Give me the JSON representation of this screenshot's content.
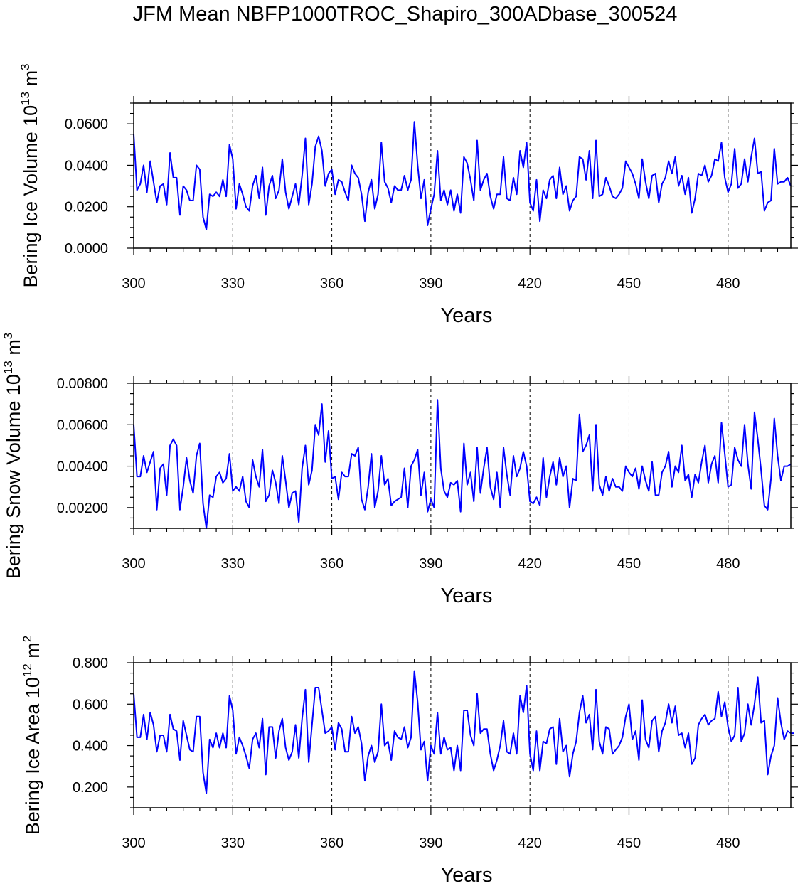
{
  "title": "JFM Mean NBFP1000TROC_Shapiro_300ADbase_300524",
  "chart_data": [
    {
      "type": "line",
      "ylabel_main": "Bering Ice Volume 10",
      "ylabel_exp": "13",
      "ylabel_unit": " m",
      "ylabel_unit_exp": "3",
      "xlabel": "Years",
      "xlim": [
        300,
        499
      ],
      "ylim": [
        0.0,
        0.07
      ],
      "xticks": [
        300,
        330,
        360,
        390,
        420,
        450,
        480
      ],
      "xtick_labels": [
        "300",
        "330",
        "360",
        "390",
        "420",
        "450",
        "480"
      ],
      "yticks": [
        0.0,
        0.02,
        0.04,
        0.06
      ],
      "ytick_labels": [
        "0.0000",
        "0.0200",
        "0.0400",
        "0.0600"
      ],
      "series_color": "#0000ff",
      "x_start": 300,
      "values": [
        0.055,
        0.028,
        0.031,
        0.04,
        0.027,
        0.042,
        0.032,
        0.022,
        0.03,
        0.031,
        0.021,
        0.046,
        0.034,
        0.034,
        0.016,
        0.03,
        0.028,
        0.023,
        0.023,
        0.04,
        0.038,
        0.015,
        0.009,
        0.026,
        0.025,
        0.027,
        0.025,
        0.033,
        0.025,
        0.05,
        0.043,
        0.019,
        0.031,
        0.026,
        0.02,
        0.018,
        0.03,
        0.035,
        0.024,
        0.039,
        0.016,
        0.03,
        0.035,
        0.024,
        0.028,
        0.043,
        0.027,
        0.019,
        0.025,
        0.031,
        0.021,
        0.035,
        0.053,
        0.021,
        0.031,
        0.049,
        0.054,
        0.047,
        0.03,
        0.036,
        0.038,
        0.026,
        0.033,
        0.032,
        0.027,
        0.023,
        0.04,
        0.036,
        0.034,
        0.026,
        0.013,
        0.027,
        0.033,
        0.019,
        0.026,
        0.051,
        0.032,
        0.029,
        0.022,
        0.03,
        0.028,
        0.028,
        0.035,
        0.028,
        0.033,
        0.061,
        0.04,
        0.024,
        0.033,
        0.011,
        0.019,
        0.026,
        0.047,
        0.023,
        0.028,
        0.021,
        0.028,
        0.018,
        0.026,
        0.017,
        0.044,
        0.041,
        0.033,
        0.023,
        0.052,
        0.028,
        0.033,
        0.036,
        0.025,
        0.019,
        0.026,
        0.026,
        0.044,
        0.024,
        0.023,
        0.034,
        0.026,
        0.047,
        0.039,
        0.051,
        0.022,
        0.018,
        0.033,
        0.013,
        0.028,
        0.024,
        0.033,
        0.035,
        0.024,
        0.039,
        0.026,
        0.03,
        0.018,
        0.023,
        0.025,
        0.044,
        0.043,
        0.033,
        0.047,
        0.024,
        0.052,
        0.025,
        0.026,
        0.034,
        0.03,
        0.025,
        0.024,
        0.026,
        0.029,
        0.042,
        0.039,
        0.036,
        0.031,
        0.024,
        0.043,
        0.032,
        0.024,
        0.035,
        0.036,
        0.022,
        0.031,
        0.034,
        0.042,
        0.036,
        0.044,
        0.03,
        0.035,
        0.026,
        0.034,
        0.017,
        0.024,
        0.036,
        0.035,
        0.04,
        0.032,
        0.035,
        0.043,
        0.042,
        0.051,
        0.034,
        0.027,
        0.031,
        0.048,
        0.029,
        0.031,
        0.043,
        0.032,
        0.044,
        0.053,
        0.036,
        0.037,
        0.018,
        0.022,
        0.023,
        0.048,
        0.031,
        0.032,
        0.032,
        0.034,
        0.03
      ]
    },
    {
      "type": "line",
      "ylabel_main": "Bering Snow Volume 10",
      "ylabel_exp": "13",
      "ylabel_unit": " m",
      "ylabel_unit_exp": "3",
      "xlabel": "Years",
      "xlim": [
        300,
        499
      ],
      "ylim": [
        0.001,
        0.008
      ],
      "xticks": [
        300,
        330,
        360,
        390,
        420,
        450,
        480
      ],
      "xtick_labels": [
        "300",
        "330",
        "360",
        "390",
        "420",
        "450",
        "480"
      ],
      "yticks": [
        0.002,
        0.004,
        0.006,
        0.008
      ],
      "ytick_labels": [
        "0.00200",
        "0.00400",
        "0.00600",
        "0.00800"
      ],
      "series_color": "#0000ff",
      "x_start": 300,
      "values": [
        0.006,
        0.0035,
        0.0035,
        0.0045,
        0.0037,
        0.0042,
        0.0047,
        0.0019,
        0.0039,
        0.0041,
        0.0026,
        0.005,
        0.0053,
        0.005,
        0.0019,
        0.003,
        0.0044,
        0.0033,
        0.0027,
        0.0045,
        0.0051,
        0.0022,
        0.001,
        0.0026,
        0.0025,
        0.0035,
        0.0037,
        0.0032,
        0.0034,
        0.0046,
        0.0028,
        0.003,
        0.0028,
        0.0035,
        0.0023,
        0.002,
        0.0043,
        0.0035,
        0.003,
        0.0048,
        0.0023,
        0.0026,
        0.0038,
        0.0032,
        0.0022,
        0.0045,
        0.0033,
        0.002,
        0.0027,
        0.0028,
        0.0013,
        0.0039,
        0.005,
        0.0031,
        0.0038,
        0.006,
        0.0055,
        0.007,
        0.0042,
        0.0057,
        0.0034,
        0.0035,
        0.0024,
        0.0037,
        0.0035,
        0.0035,
        0.0046,
        0.0045,
        0.0049,
        0.0024,
        0.0019,
        0.003,
        0.0046,
        0.002,
        0.0028,
        0.0045,
        0.0031,
        0.0034,
        0.0021,
        0.0023,
        0.0024,
        0.0025,
        0.0039,
        0.002,
        0.004,
        0.0043,
        0.0048,
        0.0026,
        0.0037,
        0.0018,
        0.0024,
        0.002,
        0.0072,
        0.0039,
        0.0028,
        0.0025,
        0.0032,
        0.0031,
        0.0033,
        0.0018,
        0.0051,
        0.0031,
        0.0037,
        0.0023,
        0.0049,
        0.0027,
        0.0039,
        0.0049,
        0.003,
        0.0024,
        0.0037,
        0.002,
        0.0049,
        0.0036,
        0.0026,
        0.0045,
        0.0035,
        0.0039,
        0.0047,
        0.004,
        0.0023,
        0.0022,
        0.0025,
        0.0021,
        0.0044,
        0.0025,
        0.0035,
        0.0042,
        0.0031,
        0.0044,
        0.0035,
        0.004,
        0.002,
        0.0034,
        0.0033,
        0.0065,
        0.0047,
        0.005,
        0.0055,
        0.0028,
        0.006,
        0.0031,
        0.0026,
        0.0035,
        0.0028,
        0.0034,
        0.003,
        0.003,
        0.0028,
        0.004,
        0.0037,
        0.0035,
        0.0039,
        0.0029,
        0.004,
        0.0033,
        0.0028,
        0.0042,
        0.0026,
        0.0026,
        0.0037,
        0.004,
        0.0047,
        0.003,
        0.004,
        0.0037,
        0.005,
        0.0033,
        0.0036,
        0.0025,
        0.0036,
        0.0032,
        0.0042,
        0.005,
        0.0032,
        0.0041,
        0.0045,
        0.0032,
        0.0061,
        0.0046,
        0.003,
        0.0031,
        0.0049,
        0.0043,
        0.004,
        0.006,
        0.0041,
        0.0029,
        0.0066,
        0.0053,
        0.0038,
        0.0021,
        0.0019,
        0.0034,
        0.0063,
        0.0045,
        0.0033,
        0.004,
        0.004,
        0.0041
      ]
    },
    {
      "type": "line",
      "ylabel_main": "Bering Ice Area 10",
      "ylabel_exp": "12",
      "ylabel_unit": " m",
      "ylabel_unit_exp": "2",
      "xlabel": "Years",
      "xlim": [
        300,
        499
      ],
      "ylim": [
        0.1,
        0.8
      ],
      "xticks": [
        300,
        330,
        360,
        390,
        420,
        450,
        480
      ],
      "xtick_labels": [
        "300",
        "330",
        "360",
        "390",
        "420",
        "450",
        "480"
      ],
      "yticks": [
        0.2,
        0.4,
        0.6,
        0.8
      ],
      "ytick_labels": [
        "0.200",
        "0.400",
        "0.600",
        "0.800"
      ],
      "series_color": "#0000ff",
      "x_start": 300,
      "values": [
        0.65,
        0.44,
        0.44,
        0.55,
        0.43,
        0.56,
        0.5,
        0.37,
        0.45,
        0.45,
        0.37,
        0.55,
        0.48,
        0.47,
        0.33,
        0.52,
        0.45,
        0.38,
        0.37,
        0.54,
        0.54,
        0.27,
        0.17,
        0.43,
        0.39,
        0.46,
        0.39,
        0.46,
        0.39,
        0.64,
        0.57,
        0.36,
        0.44,
        0.4,
        0.35,
        0.29,
        0.43,
        0.46,
        0.39,
        0.53,
        0.26,
        0.49,
        0.49,
        0.34,
        0.47,
        0.53,
        0.39,
        0.33,
        0.37,
        0.5,
        0.34,
        0.53,
        0.67,
        0.32,
        0.5,
        0.68,
        0.68,
        0.57,
        0.46,
        0.47,
        0.49,
        0.38,
        0.51,
        0.48,
        0.37,
        0.37,
        0.54,
        0.46,
        0.49,
        0.41,
        0.23,
        0.35,
        0.4,
        0.32,
        0.37,
        0.6,
        0.4,
        0.42,
        0.33,
        0.47,
        0.44,
        0.43,
        0.49,
        0.39,
        0.44,
        0.76,
        0.61,
        0.38,
        0.42,
        0.23,
        0.4,
        0.36,
        0.56,
        0.36,
        0.44,
        0.38,
        0.39,
        0.28,
        0.4,
        0.28,
        0.57,
        0.57,
        0.45,
        0.4,
        0.65,
        0.46,
        0.48,
        0.48,
        0.36,
        0.28,
        0.33,
        0.4,
        0.52,
        0.37,
        0.36,
        0.46,
        0.36,
        0.64,
        0.56,
        0.69,
        0.36,
        0.28,
        0.47,
        0.28,
        0.42,
        0.41,
        0.48,
        0.49,
        0.31,
        0.53,
        0.37,
        0.4,
        0.25,
        0.36,
        0.42,
        0.56,
        0.64,
        0.51,
        0.55,
        0.38,
        0.67,
        0.42,
        0.36,
        0.49,
        0.48,
        0.36,
        0.38,
        0.4,
        0.44,
        0.54,
        0.6,
        0.43,
        0.47,
        0.33,
        0.62,
        0.43,
        0.39,
        0.52,
        0.54,
        0.37,
        0.47,
        0.51,
        0.6,
        0.51,
        0.59,
        0.45,
        0.46,
        0.39,
        0.46,
        0.31,
        0.34,
        0.5,
        0.53,
        0.55,
        0.5,
        0.52,
        0.53,
        0.66,
        0.54,
        0.61,
        0.49,
        0.42,
        0.45,
        0.68,
        0.42,
        0.46,
        0.6,
        0.5,
        0.6,
        0.73,
        0.51,
        0.52,
        0.26,
        0.35,
        0.4,
        0.63,
        0.51,
        0.43,
        0.47,
        0.46,
        0.46
      ]
    }
  ]
}
